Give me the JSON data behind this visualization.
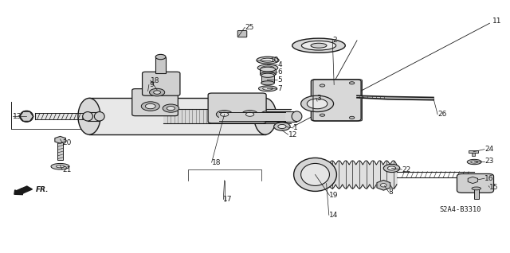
{
  "bg_color": "#ffffff",
  "fig_width": 6.4,
  "fig_height": 3.18,
  "dpi": 100,
  "line_color": "#1a1a1a",
  "label_fontsize": 6.5,
  "code_label": "S2A4-B3310",
  "leaders": [
    [
      1,
      0.548,
      0.498,
      0.57,
      0.498
    ],
    [
      2,
      0.622,
      0.69,
      0.645,
      0.66
    ],
    [
      3,
      0.615,
      0.608,
      0.615,
      0.608
    ],
    [
      4,
      0.533,
      0.765,
      0.56,
      0.742
    ],
    [
      5,
      0.533,
      0.702,
      0.56,
      0.68
    ],
    [
      6,
      0.533,
      0.73,
      0.558,
      0.713
    ],
    [
      7,
      0.533,
      0.66,
      0.556,
      0.645
    ],
    [
      8,
      0.738,
      0.262,
      0.755,
      0.245
    ],
    [
      9,
      0.31,
      0.66,
      0.335,
      0.64
    ],
    [
      10,
      0.512,
      0.76,
      0.54,
      0.76
    ],
    [
      11,
      0.62,
      0.875,
      0.965,
      0.918
    ],
    [
      12,
      0.557,
      0.488,
      0.575,
      0.47
    ],
    [
      13,
      0.048,
      0.545,
      0.038,
      0.54
    ],
    [
      14,
      0.65,
      0.265,
      0.648,
      0.148
    ],
    [
      15,
      0.945,
      0.258,
      0.96,
      0.258
    ],
    [
      16,
      0.93,
      0.285,
      0.948,
      0.295
    ],
    [
      17,
      0.43,
      0.28,
      0.43,
      0.212
    ],
    [
      18,
      0.345,
      0.64,
      0.302,
      0.682
    ],
    [
      18,
      0.416,
      0.365,
      0.412,
      0.352
    ],
    [
      19,
      0.628,
      0.232,
      0.648,
      0.225
    ],
    [
      20,
      0.115,
      0.445,
      0.122,
      0.432
    ],
    [
      21,
      0.118,
      0.342,
      0.122,
      0.332
    ],
    [
      22,
      0.768,
      0.335,
      0.79,
      0.325
    ],
    [
      23,
      0.928,
      0.368,
      0.948,
      0.362
    ],
    [
      24,
      0.928,
      0.398,
      0.948,
      0.41
    ],
    [
      25,
      0.47,
      0.865,
      0.488,
      0.895
    ],
    [
      26,
      0.845,
      0.555,
      0.855,
      0.548
    ]
  ]
}
